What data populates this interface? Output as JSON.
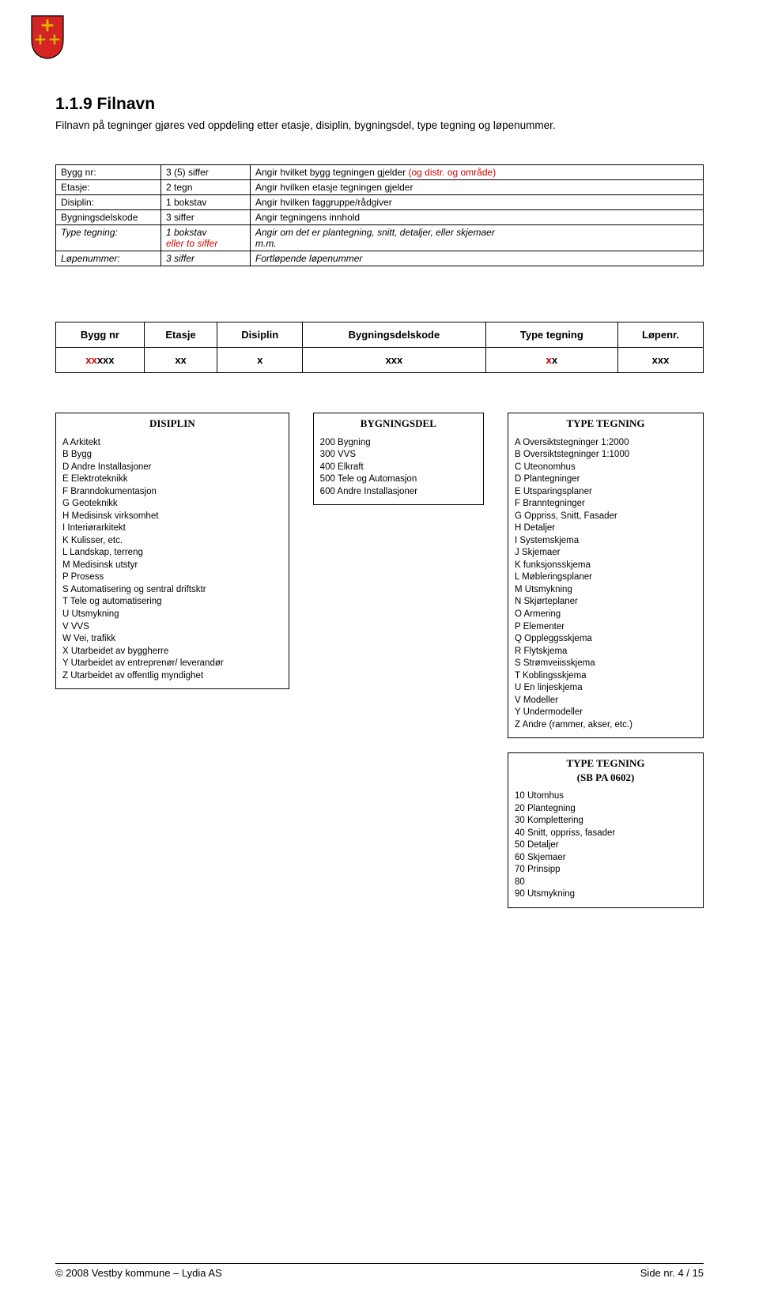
{
  "logo_colors": {
    "shield_fill": "#d42424",
    "cross_fill": "#f4b400",
    "shield_stroke": "#000000"
  },
  "heading": "1.1.9 Filnavn",
  "intro": "Filnavn på tegninger gjøres ved oppdeling etter etasje, disiplin, bygningsdel, type tegning og løpenummer.",
  "defs": [
    {
      "label": "Bygg nr:",
      "italic": false,
      "fmt": "3 (5) siffer",
      "desc_plain": "Angir hvilket bygg tegningen gjelder ",
      "desc_red": "(og distr. og område)"
    },
    {
      "label": "Etasje:",
      "italic": false,
      "fmt": "2 tegn",
      "desc_plain": "Angir hvilken etasje tegningen gjelder",
      "desc_red": ""
    },
    {
      "label": "Disiplin:",
      "italic": false,
      "fmt": "1 bokstav",
      "desc_plain": "Angir hvilken faggruppe/rådgiver",
      "desc_red": ""
    },
    {
      "label": "Bygningsdelskode",
      "italic": false,
      "fmt": "3 siffer",
      "desc_plain": "Angir tegningens innhold",
      "desc_red": ""
    },
    {
      "label": "Type tegning:",
      "italic": true,
      "fmt_line1": "1 bokstav",
      "fmt_line2_red": "eller to siffer",
      "desc_line1": "Angir om det er plantegning, snitt, detaljer, eller skjemaer",
      "desc_line2": "m.m."
    },
    {
      "label": "Løpenummer:",
      "italic": true,
      "fmt": "3 siffer",
      "desc_plain": "Fortløpende løpenummer",
      "desc_red": ""
    }
  ],
  "format_headers": [
    "Bygg nr",
    "Etasje",
    "Disiplin",
    "Bygningsdelskode",
    "Type tegning",
    "Løpenr."
  ],
  "format_values": [
    {
      "red": "xx",
      "black": "xxx"
    },
    {
      "red": "",
      "black": "xx"
    },
    {
      "red": "",
      "black": "x"
    },
    {
      "red": "",
      "black": "xxx"
    },
    {
      "red": "x",
      "black": "x"
    },
    {
      "red": "",
      "black": "xxx"
    }
  ],
  "disiplin": {
    "title": "DISIPLIN",
    "items": [
      "A Arkitekt",
      "B Bygg",
      "D Andre Installasjoner",
      "E Elektroteknikk",
      "F Branndokumentasjon",
      "G Geoteknikk",
      "H Medisinsk virksomhet",
      "I Interiørarkitekt",
      "K Kulisser, etc.",
      "L Landskap, terreng",
      "M Medisinsk utstyr",
      "P Prosess",
      "S Automatisering og sentral driftsktr",
      "T Tele og automatisering",
      "U Utsmykning",
      "V VVS",
      "W Vei, trafikk",
      "X Utarbeidet av byggherre",
      "Y Utarbeidet av entreprenør/ leverandør",
      "Z Utarbeidet av offentlig myndighet"
    ]
  },
  "bygningsdel": {
    "title": "BYGNINGSDEL",
    "items": [
      "200 Bygning",
      "300 VVS",
      "400 Elkraft",
      "500 Tele og Automasjon",
      "600 Andre Installasjoner"
    ]
  },
  "type_tegning": {
    "title": "TYPE TEGNING",
    "items": [
      "A Oversiktstegninger 1:2000",
      "B Oversiktstegninger 1:1000",
      "C Uteonomhus",
      "D Plantegninger",
      "E Utsparingsplaner",
      "F Branntegninger",
      "G Oppriss, Snitt, Fasader",
      "H Detaljer",
      "I Systemskjema",
      "J Skjemaer",
      "K funksjonsskjema",
      "L Møbleringsplaner",
      "M Utsmykning",
      "N Skjørteplaner",
      "O Armering",
      "P Elementer",
      "Q Oppleggsskjema",
      "R Flytskjema",
      "S Strømveiisskjema",
      "T Koblingsskjema",
      "U En linjeskjema",
      "V Modeller",
      "Y Undermodeller",
      "Z Andre (rammer, akser, etc.)"
    ]
  },
  "type_tegning_sb": {
    "title": "TYPE TEGNING",
    "subtitle": "(SB PA 0602)",
    "items": [
      "10 Utomhus",
      "20 Plantegning",
      "30 Komplettering",
      "40 Snitt, oppriss, fasader",
      "50 Detaljer",
      "60 Skjemaer",
      "70 Prinsipp",
      "80",
      "90 Utsmykning"
    ]
  },
  "footer_left": "© 2008 Vestby kommune – Lydia AS",
  "footer_right": "Side nr. 4 / 15"
}
